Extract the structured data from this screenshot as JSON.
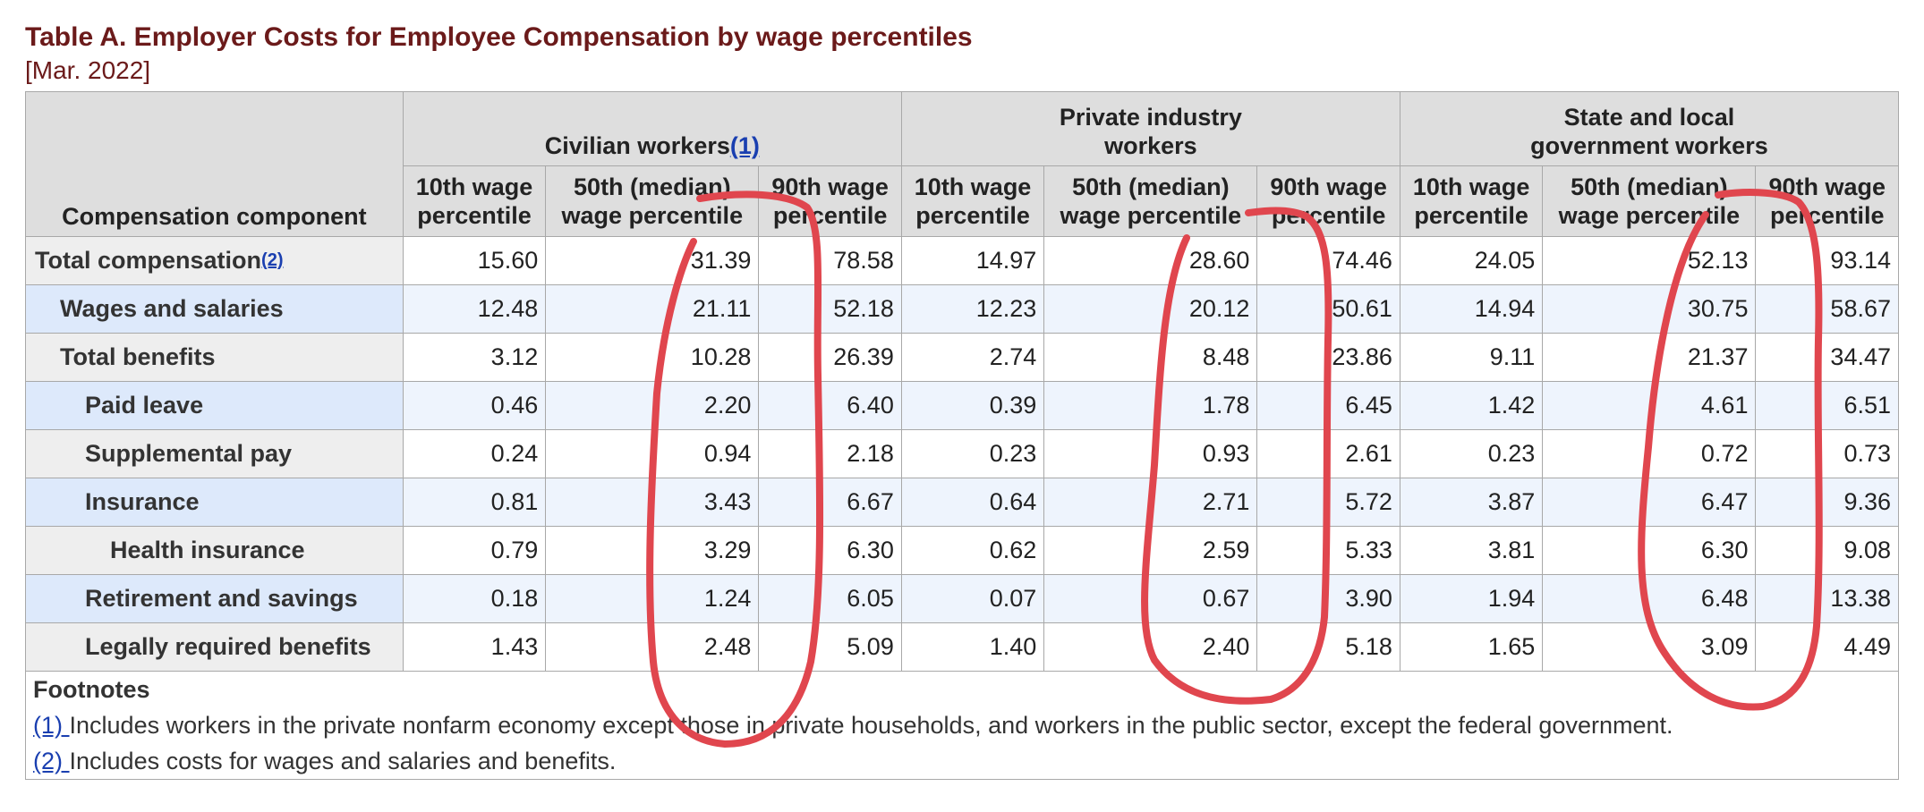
{
  "title": "Table A. Employer Costs for Employee Compensation by wage percentiles",
  "date": "[Mar. 2022]",
  "header": {
    "stub": "Compensation component",
    "groups": [
      {
        "label": "Civilian workers",
        "ref": "(1)"
      },
      {
        "label": "Private industry workers",
        "ref": ""
      },
      {
        "label": "State and local government workers",
        "ref": ""
      }
    ],
    "columns": [
      "10th wage percentile",
      "50th (median) wage percentile",
      "90th wage percentile",
      "10th wage percentile",
      "50th (median) wage percentile",
      "90th wage percentile",
      "10th wage percentile",
      "50th (median) wage percentile",
      "90th wage percentile"
    ]
  },
  "rows": [
    {
      "label": "Total compensation",
      "ref": "(2)",
      "values": [
        "15.60",
        "31.39",
        "78.58",
        "14.97",
        "28.60",
        "74.46",
        "24.05",
        "52.13",
        "93.14"
      ]
    },
    {
      "label": "Wages and salaries",
      "ref": "",
      "values": [
        "12.48",
        "21.11",
        "52.18",
        "12.23",
        "20.12",
        "50.61",
        "14.94",
        "30.75",
        "58.67"
      ]
    },
    {
      "label": "Total benefits",
      "ref": "",
      "values": [
        "3.12",
        "10.28",
        "26.39",
        "2.74",
        "8.48",
        "23.86",
        "9.11",
        "21.37",
        "34.47"
      ]
    },
    {
      "label": "Paid leave",
      "ref": "",
      "values": [
        "0.46",
        "2.20",
        "6.40",
        "0.39",
        "1.78",
        "6.45",
        "1.42",
        "4.61",
        "6.51"
      ]
    },
    {
      "label": "Supplemental pay",
      "ref": "",
      "values": [
        "0.24",
        "0.94",
        "2.18",
        "0.23",
        "0.93",
        "2.61",
        "0.23",
        "0.72",
        "0.73"
      ]
    },
    {
      "label": "Insurance",
      "ref": "",
      "values": [
        "0.81",
        "3.43",
        "6.67",
        "0.64",
        "2.71",
        "5.72",
        "3.87",
        "6.47",
        "9.36"
      ]
    },
    {
      "label": "Health insurance",
      "ref": "",
      "values": [
        "0.79",
        "3.29",
        "6.30",
        "0.62",
        "2.59",
        "5.33",
        "3.81",
        "6.30",
        "9.08"
      ]
    },
    {
      "label": "Retirement and savings",
      "ref": "",
      "values": [
        "0.18",
        "1.24",
        "6.05",
        "0.07",
        "0.67",
        "3.90",
        "1.94",
        "6.48",
        "13.38"
      ]
    },
    {
      "label": "Legally required benefits",
      "ref": "",
      "values": [
        "1.43",
        "2.48",
        "5.09",
        "1.40",
        "2.40",
        "5.18",
        "1.65",
        "3.09",
        "4.49"
      ]
    }
  ],
  "footnotes": {
    "heading": "Footnotes",
    "items": [
      {
        "ref": "(1)",
        "text": "Includes workers in the private nonfarm economy except those in private households, and workers in the public sector, except the federal government."
      },
      {
        "ref": "(2)",
        "text": "Includes costs for wages and salaries and benefits."
      }
    ]
  },
  "annotation": {
    "color": "#e0464e",
    "icon": "hand-drawn-circle"
  }
}
